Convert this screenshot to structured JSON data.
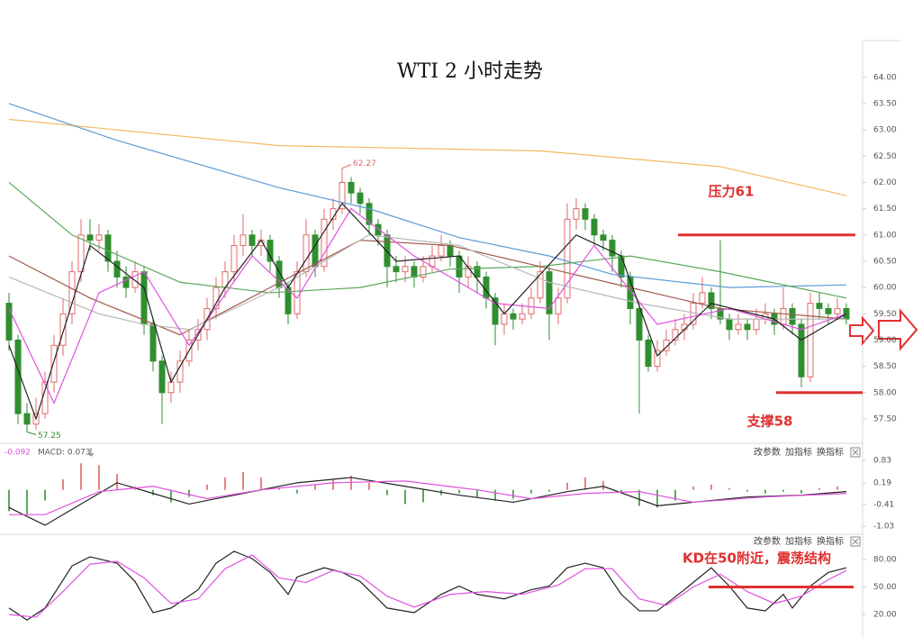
{
  "chart_data": [
    {
      "type": "candlestick",
      "title": "WTI 2 小时走势",
      "ylim": [
        57.07,
        64.7
      ],
      "yticks": [
        {
          "value": 57.5,
          "label": "57.50"
        },
        {
          "value": 58,
          "label": "58.00"
        },
        {
          "value": 58.5,
          "label": "58.50"
        },
        {
          "value": 59,
          "label": "59.00"
        },
        {
          "value": 59.5,
          "label": "59.50"
        },
        {
          "value": 60,
          "label": "60.00"
        },
        {
          "value": 60.5,
          "label": "60.50"
        },
        {
          "value": 61,
          "label": "61.00"
        },
        {
          "value": 61.5,
          "label": "61.50"
        },
        {
          "value": 62,
          "label": "62.00"
        },
        {
          "value": 62.5,
          "label": "62.50"
        },
        {
          "value": 63,
          "label": "63.00"
        },
        {
          "value": 63.5,
          "label": "63.50"
        },
        {
          "value": 64,
          "label": "64.00"
        }
      ],
      "up_color": "#e06868",
      "down_color": "#2f8f2f",
      "open": [
        59.7,
        59.0,
        57.6,
        57.4,
        57.6,
        58.2,
        58.9,
        59.5,
        60.3,
        61.0,
        60.9,
        61.0,
        60.5,
        60.2,
        60.0,
        60.3,
        59.3,
        58.6,
        58.0,
        58.2,
        58.6,
        59.0,
        59.2,
        59.6,
        60.0,
        60.3,
        60.8,
        61.0,
        60.8,
        60.9,
        60.5,
        60.0,
        59.5,
        60.3,
        61.0,
        60.4,
        61.3,
        61.5,
        62.0,
        61.8,
        61.6,
        61.2,
        61.0,
        60.4,
        60.3,
        60.4,
        60.2,
        60.4,
        60.6,
        60.8,
        60.6,
        60.2,
        60.4,
        60.2,
        59.8,
        59.3,
        59.5,
        59.4,
        59.5,
        59.8,
        60.3,
        59.5,
        59.8,
        61.3,
        61.5,
        61.3,
        61.0,
        60.9,
        60.6,
        60.2,
        59.6,
        59.0,
        58.5,
        58.8,
        59.0,
        59.2,
        59.3,
        59.7,
        59.9,
        59.6,
        59.4,
        59.2,
        59.3,
        59.2,
        59.4,
        59.5,
        59.3,
        59.6,
        59.3,
        58.3,
        59.7,
        59.6,
        59.5,
        59.6
      ],
      "high": [
        59.9,
        59.1,
        57.8,
        57.9,
        58.4,
        59.1,
        59.8,
        60.5,
        61.3,
        61.3,
        61.2,
        61.1,
        60.7,
        60.4,
        60.5,
        60.4,
        59.4,
        58.7,
        58.4,
        58.8,
        59.2,
        59.4,
        59.8,
        60.2,
        60.5,
        61.0,
        61.4,
        61.1,
        61.1,
        61.0,
        60.6,
        60.1,
        60.5,
        61.3,
        61.1,
        61.5,
        61.7,
        62.27,
        62.1,
        61.9,
        61.7,
        61.3,
        61.1,
        60.6,
        60.6,
        60.5,
        60.6,
        60.8,
        61.0,
        60.9,
        60.7,
        60.6,
        60.5,
        60.3,
        59.9,
        59.7,
        59.6,
        59.7,
        60.0,
        60.5,
        60.4,
        60.0,
        61.6,
        61.7,
        61.6,
        61.4,
        61.1,
        61.0,
        60.7,
        60.3,
        59.7,
        59.1,
        59.0,
        59.2,
        59.4,
        59.5,
        59.9,
        60.2,
        60.0,
        60.9,
        59.5,
        59.5,
        59.4,
        59.6,
        59.7,
        59.6,
        60.0,
        59.7,
        59.4,
        59.9,
        59.9,
        59.7,
        59.8,
        59.7
      ],
      "low": [
        58.8,
        57.4,
        57.25,
        57.3,
        57.5,
        58.0,
        58.7,
        59.3,
        60.1,
        60.7,
        60.7,
        60.3,
        60.0,
        59.8,
        59.9,
        59.1,
        58.4,
        57.4,
        57.8,
        58.0,
        58.5,
        58.8,
        59.0,
        59.4,
        59.8,
        60.1,
        60.6,
        60.6,
        60.6,
        60.3,
        59.8,
        59.3,
        59.4,
        60.2,
        60.2,
        60.3,
        61.1,
        61.4,
        61.6,
        61.4,
        61.0,
        60.8,
        60.0,
        60.1,
        60.1,
        60.0,
        60.1,
        60.3,
        60.5,
        60.4,
        59.9,
        60.0,
        59.9,
        59.6,
        58.9,
        59.1,
        59.2,
        59.3,
        59.4,
        59.7,
        59.0,
        59.3,
        59.7,
        61.1,
        61.1,
        60.8,
        60.7,
        60.3,
        60.0,
        59.3,
        57.6,
        58.4,
        58.4,
        58.7,
        58.9,
        59.0,
        59.2,
        59.6,
        59.4,
        59.3,
        59.0,
        59.1,
        59.0,
        59.1,
        59.3,
        59.1,
        59.2,
        59.1,
        58.1,
        58.2,
        59.4,
        59.3,
        59.4,
        59.3
      ],
      "close": [
        59.0,
        57.6,
        57.4,
        57.6,
        58.2,
        58.9,
        59.5,
        60.3,
        61.0,
        60.9,
        61.0,
        60.5,
        60.2,
        60.0,
        60.3,
        59.3,
        58.6,
        58.0,
        58.2,
        58.6,
        59.0,
        59.2,
        59.6,
        60.0,
        60.3,
        60.8,
        61.0,
        60.8,
        60.9,
        60.5,
        60.0,
        59.5,
        60.3,
        61.0,
        60.4,
        61.3,
        61.5,
        62.0,
        61.8,
        61.6,
        61.2,
        61.0,
        60.4,
        60.3,
        60.4,
        60.2,
        60.4,
        60.6,
        60.8,
        60.6,
        60.2,
        60.4,
        60.2,
        59.8,
        59.3,
        59.5,
        59.4,
        59.5,
        59.8,
        60.3,
        59.5,
        59.8,
        61.3,
        61.5,
        61.3,
        61.0,
        60.9,
        60.6,
        60.2,
        59.6,
        59.0,
        58.5,
        58.8,
        59.0,
        59.2,
        59.3,
        59.7,
        59.9,
        59.6,
        59.4,
        59.2,
        59.3,
        59.2,
        59.4,
        59.5,
        59.3,
        59.6,
        59.3,
        58.3,
        59.7,
        59.6,
        59.5,
        59.6,
        59.4
      ],
      "max_label": {
        "value": 62.27,
        "label": "62.27"
      },
      "min_label": {
        "value": 57.25,
        "label": "57.25"
      },
      "series": [
        {
          "color": "#f5b860",
          "x": [
            0,
            30,
            59,
            79,
            93
          ],
          "values": [
            63.2,
            62.7,
            62.6,
            62.3,
            61.75
          ]
        },
        {
          "color": "#5a9bd8",
          "x": [
            0,
            12,
            30,
            40,
            50,
            60,
            67,
            80,
            93
          ],
          "values": [
            63.5,
            62.8,
            61.9,
            61.5,
            60.95,
            60.6,
            60.25,
            60.0,
            60.05
          ]
        },
        {
          "color": "#5aa85a",
          "x": [
            0,
            7,
            19,
            29,
            39,
            49,
            59,
            69,
            79,
            93
          ],
          "values": [
            62.0,
            61.0,
            60.1,
            59.9,
            60.0,
            60.35,
            60.4,
            60.6,
            60.3,
            59.8
          ]
        },
        {
          "color": "#a05a4a",
          "x": [
            0,
            9,
            19,
            29,
            39,
            49,
            59,
            69,
            79,
            93
          ],
          "values": [
            60.6,
            59.8,
            59.1,
            60.0,
            60.9,
            60.8,
            60.4,
            60.0,
            59.6,
            59.4
          ]
        },
        {
          "color": "#b8b8b8",
          "x": [
            0,
            10,
            15,
            20,
            30,
            40,
            50,
            60,
            70,
            80,
            93
          ],
          "values": [
            60.2,
            59.5,
            59.3,
            59.2,
            60.0,
            61.0,
            60.8,
            60.1,
            59.7,
            59.4,
            59.4
          ]
        },
        {
          "color": "#e050e0",
          "x": [
            0,
            5,
            10,
            15,
            20,
            27,
            32,
            38,
            45,
            54,
            60,
            65,
            72,
            80,
            88,
            93
          ],
          "values": [
            59.6,
            57.8,
            59.9,
            60.3,
            58.9,
            60.6,
            59.8,
            61.5,
            60.6,
            59.7,
            59.6,
            60.8,
            59.3,
            59.6,
            59.2,
            59.5
          ]
        },
        {
          "color": "#222222",
          "x": [
            0,
            3,
            9,
            15,
            18,
            24,
            28,
            31,
            37,
            43,
            50,
            55,
            63,
            68,
            72,
            78,
            85,
            88,
            93
          ],
          "values": [
            58.9,
            57.5,
            60.8,
            60.0,
            58.2,
            60.0,
            60.9,
            60.0,
            61.6,
            60.5,
            60.6,
            59.5,
            61.0,
            60.6,
            58.7,
            59.7,
            59.4,
            59.0,
            59.5
          ]
        }
      ],
      "reference_lines": [
        {
          "value": 61,
          "label": "压力61",
          "color": "#e03030"
        },
        {
          "value": 58,
          "label": "支撑58",
          "color": "#e03030"
        }
      ]
    },
    {
      "type": "macd",
      "header": [
        "-0.092",
        "MACD: 0.073"
      ],
      "buttons": [
        "改参数",
        "加指标",
        "换指标"
      ],
      "ylim": [
        -1.23,
        1.24
      ],
      "yticks": [
        -1.03,
        -0.41,
        0.19,
        0.83
      ],
      "up_color": "#e88080",
      "down_color": "#5aaa5a",
      "histogram": {
        "x": [
          0,
          2,
          4,
          6,
          8,
          10,
          12,
          14,
          16,
          18,
          20,
          22,
          24,
          26,
          28,
          30,
          32,
          34,
          36,
          38,
          40,
          42,
          44,
          46,
          48,
          50,
          52,
          54,
          56,
          58,
          60,
          62,
          64,
          66,
          68,
          70,
          72,
          74,
          76,
          78,
          80,
          82,
          84,
          86,
          88,
          90,
          92
        ],
        "values": [
          -0.6,
          -0.7,
          -0.3,
          0.3,
          0.75,
          0.7,
          0.45,
          0.1,
          -0.15,
          -0.35,
          -0.2,
          0.15,
          0.35,
          0.5,
          0.35,
          0.05,
          -0.1,
          0.15,
          0.3,
          0.4,
          0.2,
          -0.15,
          -0.4,
          -0.35,
          -0.15,
          -0.1,
          -0.2,
          -0.3,
          -0.25,
          -0.1,
          -0.05,
          0.2,
          0.35,
          0.25,
          -0.1,
          -0.45,
          -0.5,
          -0.3,
          0.1,
          0.15,
          0.05,
          -0.05,
          -0.1,
          -0.05,
          -0.1,
          0.05,
          0.1
        ]
      },
      "series": [
        {
          "color": "#222222",
          "x": [
            0,
            4,
            8,
            12,
            16,
            20,
            26,
            32,
            38,
            44,
            50,
            56,
            62,
            66,
            72,
            76,
            82,
            88,
            93
          ],
          "values": [
            -0.5,
            -1.0,
            -0.4,
            0.2,
            -0.1,
            -0.4,
            -0.1,
            0.2,
            0.35,
            0.1,
            -0.15,
            -0.35,
            -0.05,
            0.1,
            -0.45,
            -0.35,
            -0.2,
            -0.15,
            -0.05
          ]
        },
        {
          "color": "#e050e0",
          "x": [
            0,
            4,
            10,
            16,
            22,
            28,
            36,
            44,
            52,
            58,
            64,
            70,
            76,
            84,
            93
          ],
          "values": [
            -0.7,
            -0.7,
            -0.05,
            0.1,
            -0.25,
            0.0,
            0.2,
            0.25,
            0.0,
            -0.25,
            -0.1,
            -0.05,
            -0.35,
            -0.2,
            -0.1
          ]
        }
      ]
    },
    {
      "type": "kd",
      "buttons": [
        "改参数",
        "加指标",
        "换指标"
      ],
      "ylim": [
        2.3,
        105.6
      ],
      "yticks": [
        {
          "value": 20,
          "label": "20.00"
        },
        {
          "value": 50,
          "label": "50.00"
        },
        {
          "value": 80,
          "label": "80.00"
        }
      ],
      "series": [
        {
          "color": "#222222",
          "x": [
            0,
            2,
            4,
            7,
            9,
            12,
            14,
            16,
            18,
            21,
            23,
            25,
            27,
            29,
            31,
            32,
            35,
            37,
            39,
            42,
            45,
            48,
            50,
            52,
            55,
            58,
            60,
            62,
            64,
            66,
            68,
            70,
            72,
            75,
            78,
            80,
            82,
            84,
            86,
            87,
            89,
            91,
            93
          ],
          "values": [
            27,
            14,
            27,
            73,
            83,
            76,
            56,
            22,
            27,
            47,
            76,
            89,
            81,
            66,
            42,
            61,
            71,
            66,
            56,
            27,
            22,
            42,
            51,
            42,
            37,
            47,
            51,
            71,
            76,
            71,
            42,
            24,
            24,
            47,
            71,
            51,
            27,
            24,
            42,
            27,
            51,
            66,
            71
          ]
        },
        {
          "color": "#e050e0",
          "x": [
            0,
            3,
            6,
            9,
            12,
            15,
            18,
            21,
            24,
            27,
            30,
            33,
            36,
            39,
            42,
            45,
            49,
            53,
            57,
            61,
            64,
            67,
            70,
            73,
            76,
            79,
            82,
            85,
            88,
            91,
            93
          ],
          "values": [
            20,
            17,
            45,
            75,
            78,
            60,
            32,
            37,
            70,
            85,
            60,
            55,
            68,
            62,
            40,
            28,
            42,
            45,
            42,
            52,
            70,
            70,
            37,
            30,
            50,
            64,
            45,
            32,
            40,
            58,
            68
          ]
        }
      ],
      "reference_lines": [
        {
          "value": 50,
          "label": "KD在50附近，震荡结构",
          "color": "#e03030"
        }
      ]
    }
  ]
}
